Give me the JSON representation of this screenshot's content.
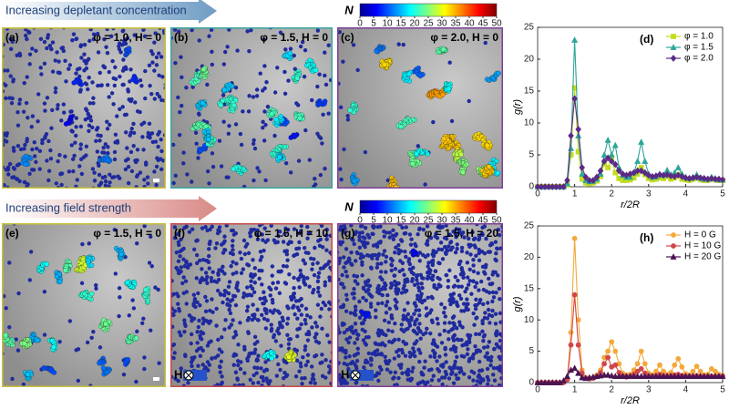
{
  "rows": [
    {
      "header": "Increasing depletant concentration",
      "colorbar_symbol": "N",
      "colorbar_ticks": [
        0,
        5,
        10,
        15,
        20,
        25,
        30,
        35,
        40,
        45,
        50
      ],
      "panels": [
        {
          "label": "(a)",
          "text": "φ = 1.0, H = 0"
        },
        {
          "label": "(b)",
          "text": "φ = 1.5, H = 0"
        },
        {
          "label": "(c)",
          "text": "φ = 2.0, H = 0"
        }
      ]
    },
    {
      "header": "Increasing field strength",
      "colorbar_symbol": "N",
      "colorbar_ticks": [
        0,
        5,
        10,
        15,
        20,
        25,
        30,
        35,
        40,
        45,
        50
      ],
      "panels": [
        {
          "label": "(e)",
          "text": "φ = 1.5, H = 0"
        },
        {
          "label": "(f)",
          "text": "φ = 1.5, H = 10",
          "field": "H"
        },
        {
          "label": "(g)",
          "text": "φ = 1.5, H = 20",
          "field": "H"
        }
      ]
    }
  ],
  "chart_data": [
    {
      "type": "line",
      "label": "(d)",
      "xlabel": "r/2R",
      "ylabel": "g(r)",
      "x": [
        0,
        0.1,
        0.2,
        0.3,
        0.4,
        0.5,
        0.6,
        0.7,
        0.8,
        0.9,
        1.0,
        1.1,
        1.2,
        1.3,
        1.4,
        1.5,
        1.6,
        1.7,
        1.8,
        1.9,
        2.0,
        2.1,
        2.2,
        2.3,
        2.4,
        2.5,
        2.6,
        2.7,
        2.8,
        2.9,
        3.0,
        3.1,
        3.2,
        3.3,
        3.4,
        3.5,
        3.6,
        3.7,
        3.8,
        3.9,
        4.0,
        4.1,
        4.2,
        4.3,
        4.4,
        4.5,
        4.6,
        4.7,
        4.8,
        4.9,
        5.0
      ],
      "xlim": [
        0,
        5
      ],
      "xticks": [
        0,
        1,
        2,
        3,
        4,
        5
      ],
      "ylim": [
        0,
        25
      ],
      "yticks": [
        0,
        5,
        10,
        15,
        20,
        25
      ],
      "series": [
        {
          "name": "φ = 1.0",
          "color": "#c4dc1c",
          "marker": "square",
          "values": [
            0,
            0,
            0,
            0,
            0,
            0,
            0,
            0,
            0.3,
            5,
            15.5,
            5.5,
            1.2,
            0.6,
            0.5,
            0.6,
            0.9,
            1.6,
            3.6,
            3.0,
            4.6,
            2.2,
            1.3,
            1.0,
            1.0,
            1.1,
            1.4,
            2.0,
            3.0,
            1.9,
            1.3,
            1.1,
            1.2,
            1.4,
            1.3,
            1.6,
            1.2,
            1.4,
            1.9,
            1.2,
            1.1,
            1.0,
            1.2,
            1.4,
            1.1,
            1.0,
            1.0,
            1.2,
            1.1,
            1.0,
            1.0
          ]
        },
        {
          "name": "φ = 1.5",
          "color": "#2fa59a",
          "marker": "triangle",
          "values": [
            0,
            0,
            0,
            0,
            0,
            0,
            0,
            0,
            0.5,
            6,
            23,
            8,
            2,
            1,
            0.8,
            0.9,
            1.2,
            2,
            5,
            7.3,
            5,
            6.5,
            3,
            1.8,
            1.5,
            1.5,
            2.2,
            4,
            7,
            4,
            2,
            1.5,
            1.6,
            2,
            1.8,
            2.6,
            1.9,
            2.2,
            3,
            2,
            1.5,
            1.3,
            1.5,
            1.9,
            1.4,
            1.2,
            1.2,
            1.5,
            1.3,
            1.1,
            1.1
          ]
        },
        {
          "name": "φ = 2.0",
          "color": "#5b2a86",
          "marker": "diamond",
          "values": [
            0,
            0,
            0,
            0,
            0,
            0,
            0,
            0,
            1,
            8,
            13.8,
            9,
            3,
            1.5,
            1,
            1,
            1.5,
            2.5,
            4,
            4.5,
            4,
            3.5,
            2.5,
            2,
            1.8,
            2,
            2.2,
            2.5,
            2.5,
            2.2,
            1.8,
            1.6,
            1.7,
            1.9,
            1.8,
            1.9,
            1.7,
            1.6,
            1.8,
            1.6,
            1.4,
            1.3,
            1.4,
            1.5,
            1.4,
            1.3,
            1.2,
            1.3,
            1.2,
            1.2,
            1.1
          ]
        }
      ]
    },
    {
      "type": "line",
      "label": "(h)",
      "xlabel": "r/2R",
      "ylabel": "g(r)",
      "x": [
        0,
        0.1,
        0.2,
        0.3,
        0.4,
        0.5,
        0.6,
        0.7,
        0.8,
        0.9,
        1.0,
        1.1,
        1.2,
        1.3,
        1.4,
        1.5,
        1.6,
        1.7,
        1.8,
        1.9,
        2.0,
        2.1,
        2.2,
        2.3,
        2.4,
        2.5,
        2.6,
        2.7,
        2.8,
        2.9,
        3.0,
        3.1,
        3.2,
        3.3,
        3.4,
        3.5,
        3.6,
        3.7,
        3.8,
        3.9,
        4.0,
        4.1,
        4.2,
        4.3,
        4.4,
        4.5,
        4.6,
        4.7,
        4.8,
        4.9,
        5.0
      ],
      "xlim": [
        0,
        5
      ],
      "xticks": [
        0,
        1,
        2,
        3,
        4,
        5
      ],
      "ylim": [
        0,
        25
      ],
      "yticks": [
        0,
        5,
        10,
        15,
        20,
        25
      ],
      "series": [
        {
          "name": "H = 0 G",
          "color": "#f2a93b",
          "marker": "circle",
          "values": [
            0,
            0,
            0,
            0,
            0,
            0,
            0,
            0,
            0.5,
            8,
            23,
            10,
            2,
            0.8,
            0.6,
            0.8,
            1.2,
            2,
            4,
            5,
            6.5,
            5,
            3,
            1.5,
            1.2,
            1.3,
            2,
            3,
            5,
            3,
            1.5,
            1.2,
            1.8,
            2.8,
            1.8,
            1.3,
            1.6,
            2.8,
            3.8,
            2.5,
            1.4,
            1.2,
            1.8,
            2.6,
            1.8,
            1.2,
            1.3,
            2.2,
            1.8,
            1.3,
            1.1
          ]
        },
        {
          "name": "H = 10 G",
          "color": "#d2464a",
          "marker": "circle",
          "values": [
            0,
            0,
            0,
            0,
            0,
            0,
            0,
            0,
            0.5,
            6,
            14,
            6,
            1.5,
            0.7,
            0.6,
            0.7,
            1,
            1.6,
            3,
            4,
            2.5,
            2.8,
            1.6,
            1.1,
            0.9,
            1,
            1.3,
            1.8,
            2.2,
            1.5,
            1.1,
            1,
            1.1,
            1.3,
            1.1,
            1,
            1.1,
            1.2,
            1.3,
            1.1,
            1,
            1,
            1,
            1.1,
            1,
            1,
            1,
            1,
            1,
            1,
            1
          ]
        },
        {
          "name": "H = 20 G",
          "color": "#4a1452",
          "marker": "triangle",
          "values": [
            0,
            0,
            0,
            0,
            0,
            0,
            0,
            0.3,
            1,
            2,
            2.3,
            1.5,
            0.8,
            0.7,
            0.8,
            0.9,
            1,
            1.1,
            1.2,
            1.2,
            1.1,
            1,
            1,
            1,
            1,
            1,
            1,
            1,
            1,
            1,
            1,
            1,
            1,
            1,
            1,
            1,
            1,
            1,
            1,
            1,
            1,
            1,
            1,
            1,
            1,
            1,
            1,
            1,
            1,
            1,
            1
          ]
        }
      ]
    }
  ]
}
